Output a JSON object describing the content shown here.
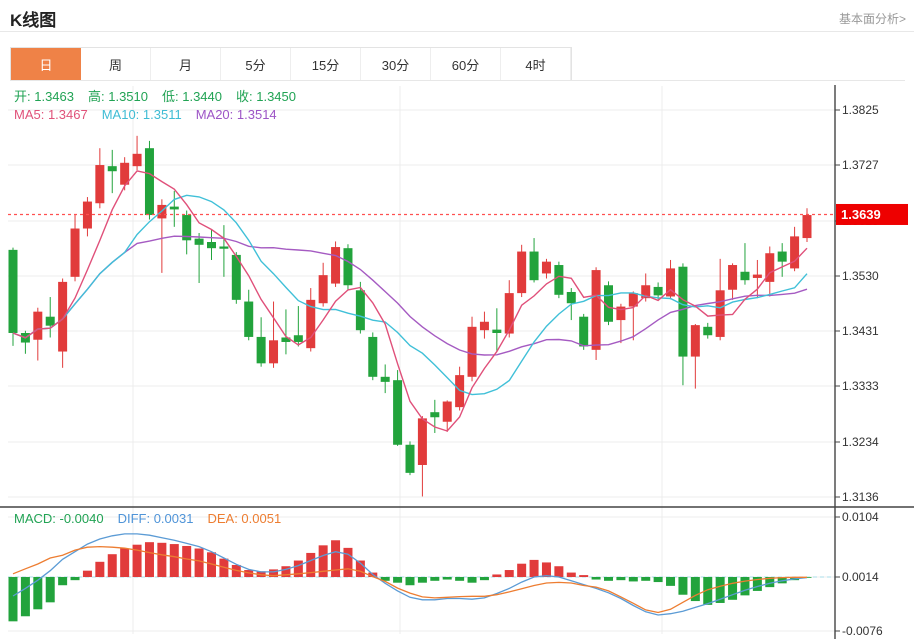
{
  "header": {
    "title": "K线图",
    "link_label": "基本面分析>"
  },
  "tabs": {
    "items": [
      {
        "label": "日",
        "active": true
      },
      {
        "label": "周",
        "active": false
      },
      {
        "label": "月",
        "active": false
      },
      {
        "label": "5分",
        "active": false
      },
      {
        "label": "15分",
        "active": false
      },
      {
        "label": "30分",
        "active": false
      },
      {
        "label": "60分",
        "active": false
      },
      {
        "label": "4时",
        "active": false
      }
    ],
    "active_bg": "#ef8247"
  },
  "main_chart": {
    "ohlc_legend": [
      {
        "label": "开:",
        "value": "1.3463",
        "color": "#21a354"
      },
      {
        "label": "高:",
        "value": "1.3510",
        "color": "#21a354"
      },
      {
        "label": "低:",
        "value": "1.3440",
        "color": "#21a354"
      },
      {
        "label": "收:",
        "value": "1.3450",
        "color": "#21a354"
      }
    ],
    "ma_legend": [
      {
        "label": "MA5:",
        "value": "1.3467",
        "color": "#e0527a"
      },
      {
        "label": "MA10:",
        "value": "1.3511",
        "color": "#3fbcd4"
      },
      {
        "label": "MA20:",
        "value": "1.3514",
        "color": "#9d55c6"
      }
    ],
    "y_tick_labels": [
      "1.3825",
      "1.3727",
      "1.3628",
      "1.3530",
      "1.3431",
      "1.3333",
      "1.3234",
      "1.3136"
    ],
    "current_price": "1.3639"
  },
  "macd_panel": {
    "legend": [
      {
        "label": "MACD:",
        "value": "-0.0040",
        "color": "#21a354"
      },
      {
        "label": "DIFF:",
        "value": "0.0031",
        "color": "#4f94d8"
      },
      {
        "label": "DEA:",
        "value": "0.0051",
        "color": "#ed7d31"
      }
    ],
    "y_tick_labels": [
      "0.0104",
      "0.0014",
      "-0.0076"
    ]
  },
  "colors": {
    "up": "#e13b3b",
    "down": "#22a33c",
    "ma5": "#e0507a",
    "ma10": "#40c0d8",
    "ma20": "#a55bc2",
    "diff_line": "#5b9bd5",
    "dea_line": "#ed7d31",
    "price_line": "#ff5050",
    "badge_bg": "#ee0000",
    "badge_text": "#ffffff",
    "grid": "#ececec",
    "axis": "#444444",
    "tick_text": "#333333",
    "macd_zero_dash": "#a8dce8"
  },
  "chart_data": {
    "type": "candlestick_with_macd",
    "title": "K线图 (daily)",
    "price_axis": {
      "ticks": [
        1.3825,
        1.3727,
        1.3628,
        1.353,
        1.3431,
        1.3333,
        1.3234,
        1.3136
      ],
      "current": 1.3639
    },
    "macd_axis": {
      "ticks": [
        0.0104,
        0.0014,
        -0.0076
      ]
    },
    "legend_values": {
      "open": 1.3463,
      "high": 1.351,
      "low": 1.344,
      "close": 1.345,
      "ma5": 1.3467,
      "ma10": 1.3511,
      "ma20": 1.3514,
      "macd": -0.004,
      "diff": 0.0031,
      "dea": 0.0051
    },
    "candles_ohlc": [
      [
        1.3576,
        1.358,
        1.3405,
        1.3428
      ],
      [
        1.3428,
        1.3432,
        1.3391,
        1.3411
      ],
      [
        1.3416,
        1.3473,
        1.3379,
        1.3466
      ],
      [
        1.3457,
        1.3492,
        1.342,
        1.3441
      ],
      [
        1.3395,
        1.3525,
        1.3366,
        1.3519
      ],
      [
        1.3528,
        1.3638,
        1.352,
        1.3614
      ],
      [
        1.3614,
        1.367,
        1.36,
        1.3662
      ],
      [
        1.3659,
        1.3757,
        1.365,
        1.3727
      ],
      [
        1.3725,
        1.3754,
        1.3677,
        1.3716
      ],
      [
        1.3692,
        1.3741,
        1.3682,
        1.3731
      ],
      [
        1.3725,
        1.3779,
        1.3718,
        1.3747
      ],
      [
        1.3757,
        1.377,
        1.363,
        1.3638
      ],
      [
        1.3632,
        1.3666,
        1.3535,
        1.3656
      ],
      [
        1.3653,
        1.3681,
        1.3617,
        1.3648
      ],
      [
        1.3638,
        1.3646,
        1.3568,
        1.3593
      ],
      [
        1.3596,
        1.3606,
        1.3517,
        1.3585
      ],
      [
        1.359,
        1.3612,
        1.3558,
        1.3579
      ],
      [
        1.3582,
        1.362,
        1.3528,
        1.3578
      ],
      [
        1.3567,
        1.3572,
        1.348,
        1.3487
      ],
      [
        1.3484,
        1.3505,
        1.3415,
        1.3421
      ],
      [
        1.3421,
        1.3456,
        1.3368,
        1.3374
      ],
      [
        1.3374,
        1.3484,
        1.3366,
        1.3415
      ],
      [
        1.342,
        1.347,
        1.339,
        1.3412
      ],
      [
        1.3424,
        1.3476,
        1.3404,
        1.3412
      ],
      [
        1.3401,
        1.3508,
        1.3395,
        1.3487
      ],
      [
        1.3481,
        1.3553,
        1.3475,
        1.3531
      ],
      [
        1.3516,
        1.3591,
        1.351,
        1.3581
      ],
      [
        1.3579,
        1.3586,
        1.3504,
        1.3513
      ],
      [
        1.3504,
        1.3519,
        1.3427,
        1.3433
      ],
      [
        1.3421,
        1.3429,
        1.3344,
        1.335
      ],
      [
        1.335,
        1.3372,
        1.3321,
        1.3341
      ],
      [
        1.3344,
        1.3362,
        1.3227,
        1.3229
      ],
      [
        1.3229,
        1.3235,
        1.3175,
        1.3179
      ],
      [
        1.3193,
        1.328,
        1.3137,
        1.3276
      ],
      [
        1.3287,
        1.3309,
        1.325,
        1.3278
      ],
      [
        1.327,
        1.3308,
        1.3252,
        1.3306
      ],
      [
        1.3296,
        1.3368,
        1.329,
        1.3353
      ],
      [
        1.335,
        1.3457,
        1.3342,
        1.3439
      ],
      [
        1.3433,
        1.3466,
        1.3418,
        1.3448
      ],
      [
        1.3434,
        1.3472,
        1.3395,
        1.3428
      ],
      [
        1.3427,
        1.3522,
        1.342,
        1.3499
      ],
      [
        1.3499,
        1.3585,
        1.3492,
        1.3573
      ],
      [
        1.3573,
        1.3597,
        1.3518,
        1.3522
      ],
      [
        1.3534,
        1.356,
        1.3525,
        1.3555
      ],
      [
        1.3549,
        1.3555,
        1.349,
        1.3496
      ],
      [
        1.3501,
        1.3508,
        1.3451,
        1.3481
      ],
      [
        1.3457,
        1.3462,
        1.3398,
        1.3404
      ],
      [
        1.3398,
        1.3545,
        1.338,
        1.354
      ],
      [
        1.3513,
        1.352,
        1.3442,
        1.3448
      ],
      [
        1.3451,
        1.348,
        1.341,
        1.3475
      ],
      [
        1.3475,
        1.3502,
        1.3415,
        1.3499
      ],
      [
        1.349,
        1.3534,
        1.3484,
        1.3513
      ],
      [
        1.351,
        1.3518,
        1.3488,
        1.3495
      ],
      [
        1.3493,
        1.3558,
        1.3488,
        1.3543
      ],
      [
        1.3546,
        1.3552,
        1.3335,
        1.3386
      ],
      [
        1.3386,
        1.3444,
        1.3329,
        1.3442
      ],
      [
        1.3439,
        1.3446,
        1.3418,
        1.3424
      ],
      [
        1.3421,
        1.356,
        1.3415,
        1.3504
      ],
      [
        1.3505,
        1.3552,
        1.3487,
        1.3549
      ],
      [
        1.3537,
        1.3588,
        1.3514,
        1.3522
      ],
      [
        1.3526,
        1.3558,
        1.349,
        1.3532
      ],
      [
        1.3519,
        1.3582,
        1.3493,
        1.357
      ],
      [
        1.3573,
        1.3588,
        1.3528,
        1.3555
      ],
      [
        1.3543,
        1.3617,
        1.3538,
        1.36
      ],
      [
        1.3597,
        1.365,
        1.359,
        1.3638
      ]
    ],
    "macd": {
      "hist": [
        -0.007,
        -0.0062,
        -0.0051,
        -0.004,
        -0.0013,
        -0.0005,
        0.001,
        0.0024,
        0.0036,
        0.0045,
        0.0051,
        0.0055,
        0.0054,
        0.0052,
        0.0049,
        0.0045,
        0.0039,
        0.0029,
        0.0019,
        0.0011,
        0.0009,
        0.0012,
        0.0017,
        0.0026,
        0.0038,
        0.005,
        0.0058,
        0.0046,
        0.0026,
        0.0007,
        -0.0006,
        -0.0009,
        -0.0013,
        -0.0009,
        -0.0006,
        -0.0004,
        -0.0006,
        -0.0009,
        -0.0005,
        0.0004,
        0.0011,
        0.0021,
        0.0027,
        0.0023,
        0.0017,
        0.0007,
        0.0003,
        -0.0004,
        -0.0006,
        -0.0005,
        -0.0007,
        -0.0006,
        -0.0008,
        -0.0014,
        -0.0028,
        -0.0038,
        -0.0044,
        -0.0041,
        -0.0036,
        -0.0029,
        -0.0022,
        -0.0016,
        -0.001,
        -0.0005,
        -0.0001
      ],
      "diff": [
        -0.003,
        -0.0018,
        -0.0005,
        0.001,
        0.0028,
        0.004,
        0.0052,
        0.006,
        0.0065,
        0.0068,
        0.0068,
        0.0066,
        0.0062,
        0.0058,
        0.0053,
        0.0048,
        0.004,
        0.003,
        0.002,
        0.0012,
        0.0008,
        0.0008,
        0.0012,
        0.0018,
        0.0026,
        0.0034,
        0.004,
        0.0036,
        0.0022,
        0.0004,
        -0.001,
        -0.0022,
        -0.0032,
        -0.0036,
        -0.0036,
        -0.0034,
        -0.0034,
        -0.0035,
        -0.0033,
        -0.0026,
        -0.0018,
        -0.0008,
        0.0,
        0.0002,
        0.0,
        -0.0006,
        -0.0012,
        -0.0018,
        -0.0025,
        -0.0034,
        -0.0045,
        -0.0055,
        -0.006,
        -0.0058,
        -0.0054,
        -0.0048,
        -0.0042,
        -0.0035,
        -0.0028,
        -0.0021,
        -0.0015,
        -0.001,
        -0.0006,
        -0.0003,
        -0.0001
      ]
    }
  }
}
